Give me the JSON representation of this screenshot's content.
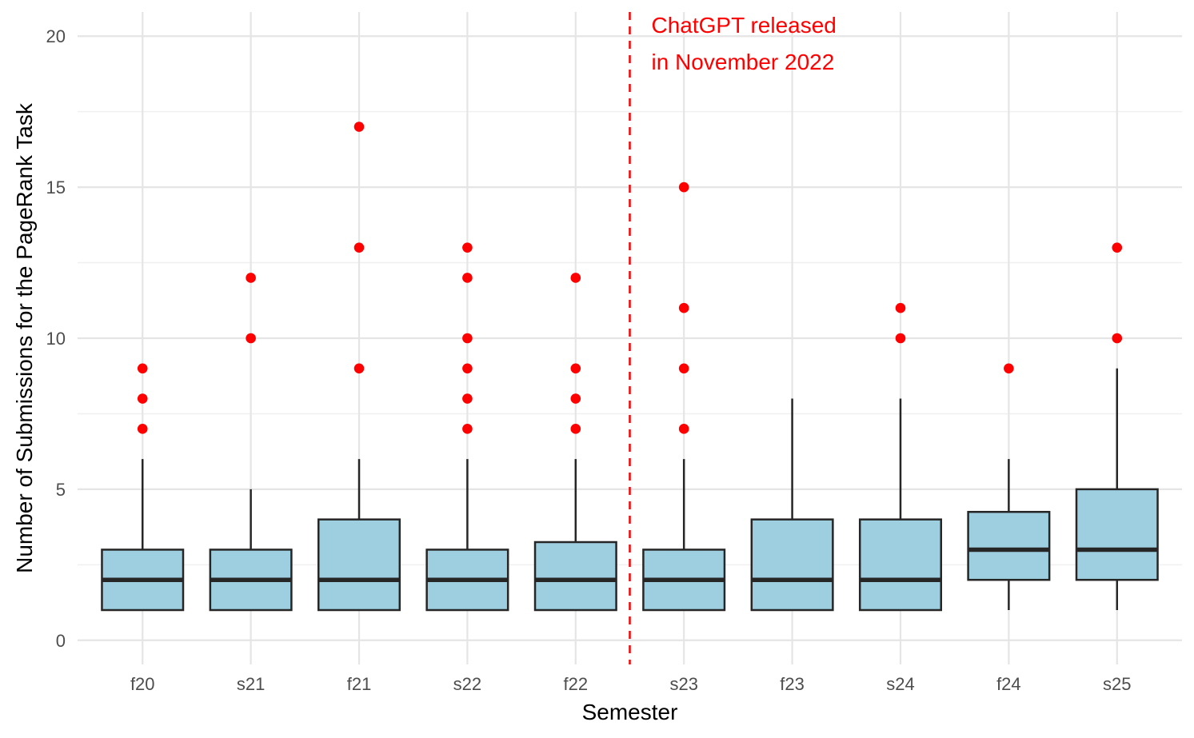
{
  "chart_data": {
    "type": "boxplot",
    "title": "",
    "xlabel": "Semester",
    "ylabel": "Number of Submissions for the PageRank Task",
    "ylim": [
      -0.8,
      20.8
    ],
    "yticks": [
      0,
      5,
      10,
      15,
      20
    ],
    "grid": true,
    "colors": {
      "box_fill": "#9ecfe0",
      "box_stroke": "#262626",
      "outlier": "#ff0000",
      "annotation": "#ff0000",
      "grid_major": "#e5e5e5",
      "grid_minor": "#f0f0f0"
    },
    "categories": [
      "f20",
      "s21",
      "f21",
      "s22",
      "f22",
      "s23",
      "f23",
      "s24",
      "f24",
      "s25"
    ],
    "boxes": [
      {
        "semester": "f20",
        "whisker_low": 1,
        "q1": 1,
        "median": 2,
        "q3": 3,
        "whisker_high": 6,
        "outliers": [
          7,
          8,
          9
        ]
      },
      {
        "semester": "s21",
        "whisker_low": 1,
        "q1": 1,
        "median": 2,
        "q3": 3,
        "whisker_high": 5,
        "outliers": [
          10,
          12
        ]
      },
      {
        "semester": "f21",
        "whisker_low": 1,
        "q1": 1,
        "median": 2,
        "q3": 4,
        "whisker_high": 6,
        "outliers": [
          9,
          13,
          17
        ]
      },
      {
        "semester": "s22",
        "whisker_low": 1,
        "q1": 1,
        "median": 2,
        "q3": 3,
        "whisker_high": 6,
        "outliers": [
          7,
          8,
          9,
          10,
          12,
          13
        ]
      },
      {
        "semester": "f22",
        "whisker_low": 1,
        "q1": 1,
        "median": 2,
        "q3": 3.25,
        "whisker_high": 6,
        "outliers": [
          7,
          8,
          9,
          12
        ]
      },
      {
        "semester": "s23",
        "whisker_low": 1,
        "q1": 1,
        "median": 2,
        "q3": 3,
        "whisker_high": 6,
        "outliers": [
          7,
          9,
          11,
          15
        ]
      },
      {
        "semester": "f23",
        "whisker_low": 1,
        "q1": 1,
        "median": 2,
        "q3": 4,
        "whisker_high": 8,
        "outliers": []
      },
      {
        "semester": "s24",
        "whisker_low": 1,
        "q1": 1,
        "median": 2,
        "q3": 4,
        "whisker_high": 8,
        "outliers": [
          10,
          11
        ]
      },
      {
        "semester": "f24",
        "whisker_low": 1,
        "q1": 2,
        "median": 3,
        "q3": 4.25,
        "whisker_high": 6,
        "outliers": [
          9
        ]
      },
      {
        "semester": "s25",
        "whisker_low": 1,
        "q1": 2,
        "median": 3,
        "q3": 5,
        "whisker_high": 9,
        "outliers": [
          10,
          13
        ]
      }
    ],
    "annotation": {
      "line_between": [
        "f22",
        "s23"
      ],
      "line_style": "dashed",
      "text_lines": [
        "ChatGPT released",
        "in November 2022"
      ]
    }
  }
}
